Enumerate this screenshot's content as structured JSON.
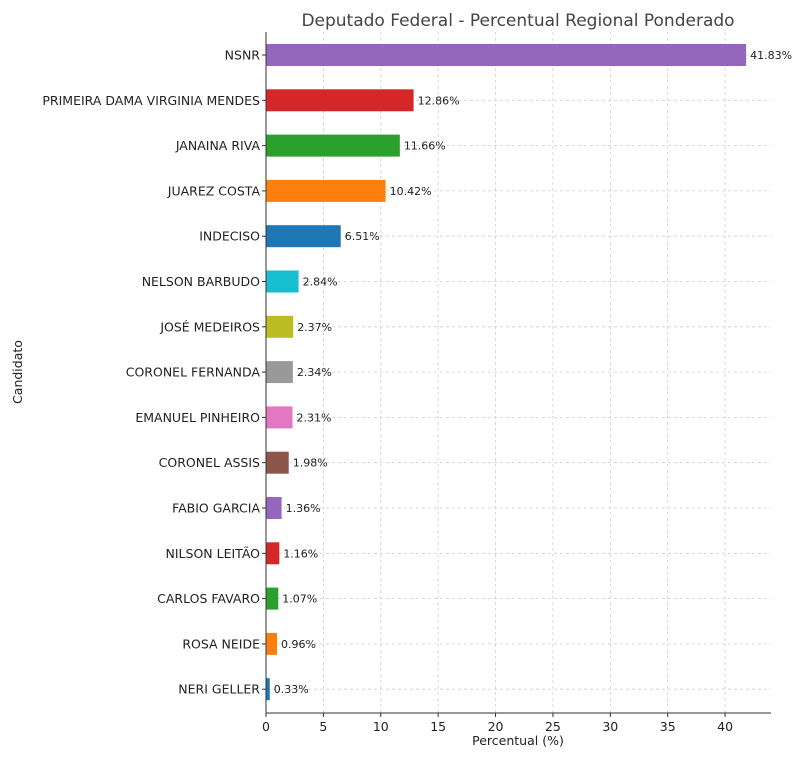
{
  "chart_data": {
    "type": "bar",
    "orientation": "horizontal",
    "title": "Deputado Federal - Percentual Regional Ponderado",
    "xlabel": "Percentual (%)",
    "ylabel": "Candidato",
    "xlim": [
      0,
      44
    ],
    "xticks": [
      0,
      5,
      10,
      15,
      20,
      25,
      30,
      35,
      40
    ],
    "grid": true,
    "legend": "none",
    "categories": [
      "NSNR",
      "PRIMEIRA DAMA VIRGINIA MENDES",
      "JANAINA RIVA",
      "JUAREZ COSTA",
      "INDECISO",
      "NELSON BARBUDO",
      "JOSÉ MEDEIROS",
      "CORONEL FERNANDA",
      "EMANUEL PINHEIRO",
      "CORONEL ASSIS",
      "FABIO GARCIA",
      "NILSON LEITÃO",
      "CARLOS FAVARO",
      "ROSA NEIDE",
      "NERI GELLER"
    ],
    "values": [
      41.83,
      12.86,
      11.66,
      10.42,
      6.51,
      2.84,
      2.37,
      2.34,
      2.31,
      1.98,
      1.36,
      1.16,
      1.07,
      0.96,
      0.33
    ],
    "value_labels": [
      "41.83%",
      "12.86%",
      "11.66%",
      "10.42%",
      "6.51%",
      "2.84%",
      "2.37%",
      "2.34%",
      "2.31%",
      "1.98%",
      "1.36%",
      "1.16%",
      "1.07%",
      "0.96%",
      "0.33%"
    ],
    "colors": [
      "#9467bd",
      "#d62728",
      "#2ca02c",
      "#ff7f0e",
      "#1f77b4",
      "#17becf",
      "#bcbd22",
      "#999999",
      "#e377c2",
      "#8c564b",
      "#9467bd",
      "#d62728",
      "#2ca02c",
      "#ff7f0e",
      "#1f77b4"
    ]
  }
}
